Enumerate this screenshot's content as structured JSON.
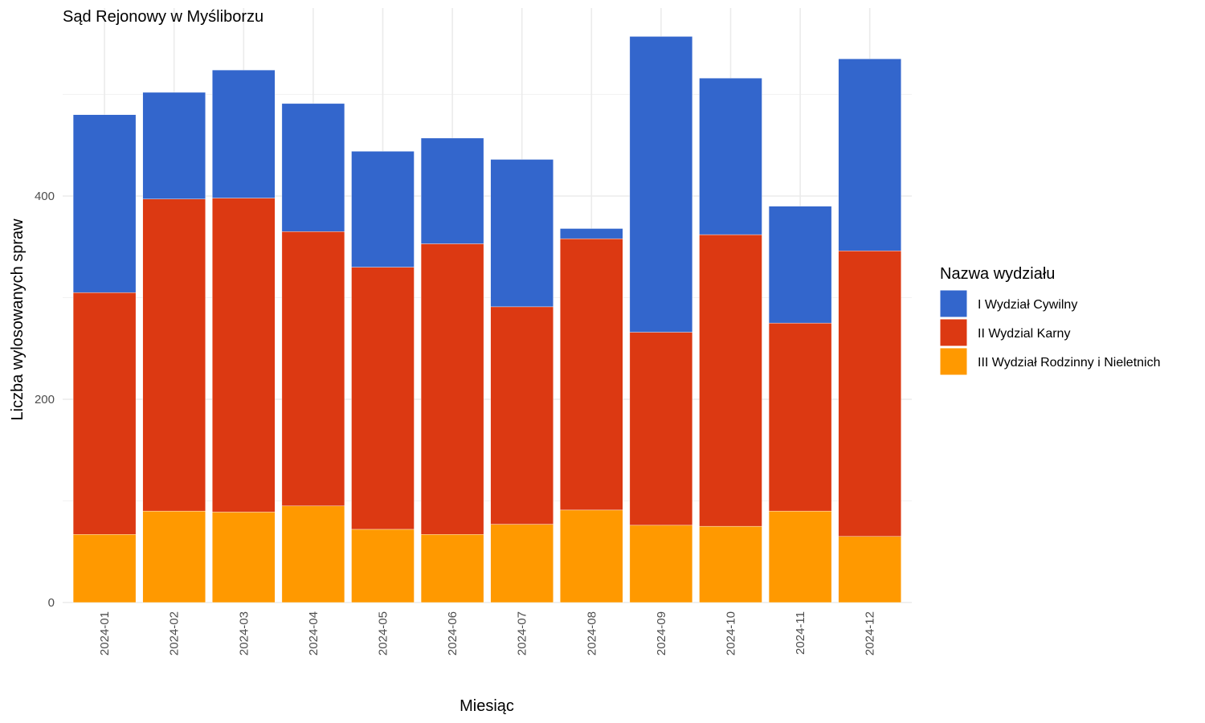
{
  "chart_data": {
    "type": "bar",
    "stacked": true,
    "title": "Sąd Rejonowy w Myśliborzu",
    "xlabel": "Miesiąc",
    "ylabel": "Liczba wylosowanych spraw",
    "ylim": [
      0,
      585
    ],
    "yticks": [
      0,
      200,
      400
    ],
    "grid": true,
    "legend_position": "right",
    "legend_title": "Nazwa wydziału",
    "categories": [
      "2024-01",
      "2024-02",
      "2024-03",
      "2024-04",
      "2024-05",
      "2024-06",
      "2024-07",
      "2024-08",
      "2024-09",
      "2024-10",
      "2024-11",
      "2024-12"
    ],
    "series": [
      {
        "name": "III Wydział Rodzinny i Nieletnich",
        "color": "#FF9900",
        "values": [
          67,
          90,
          89,
          95,
          72,
          67,
          77,
          91,
          76,
          75,
          90,
          65
        ]
      },
      {
        "name": "II Wydzial Karny",
        "color": "#DC3912",
        "values": [
          238,
          307,
          309,
          270,
          258,
          286,
          214,
          267,
          190,
          287,
          185,
          281
        ]
      },
      {
        "name": "I Wydział Cywilny",
        "color": "#3366CC",
        "values": [
          175,
          105,
          126,
          126,
          114,
          104,
          145,
          10,
          291,
          154,
          115,
          189
        ]
      }
    ],
    "legend_order": [
      "I Wydział Cywilny",
      "II Wydzial Karny",
      "III Wydział Rodzinny i Nieletnich"
    ]
  }
}
